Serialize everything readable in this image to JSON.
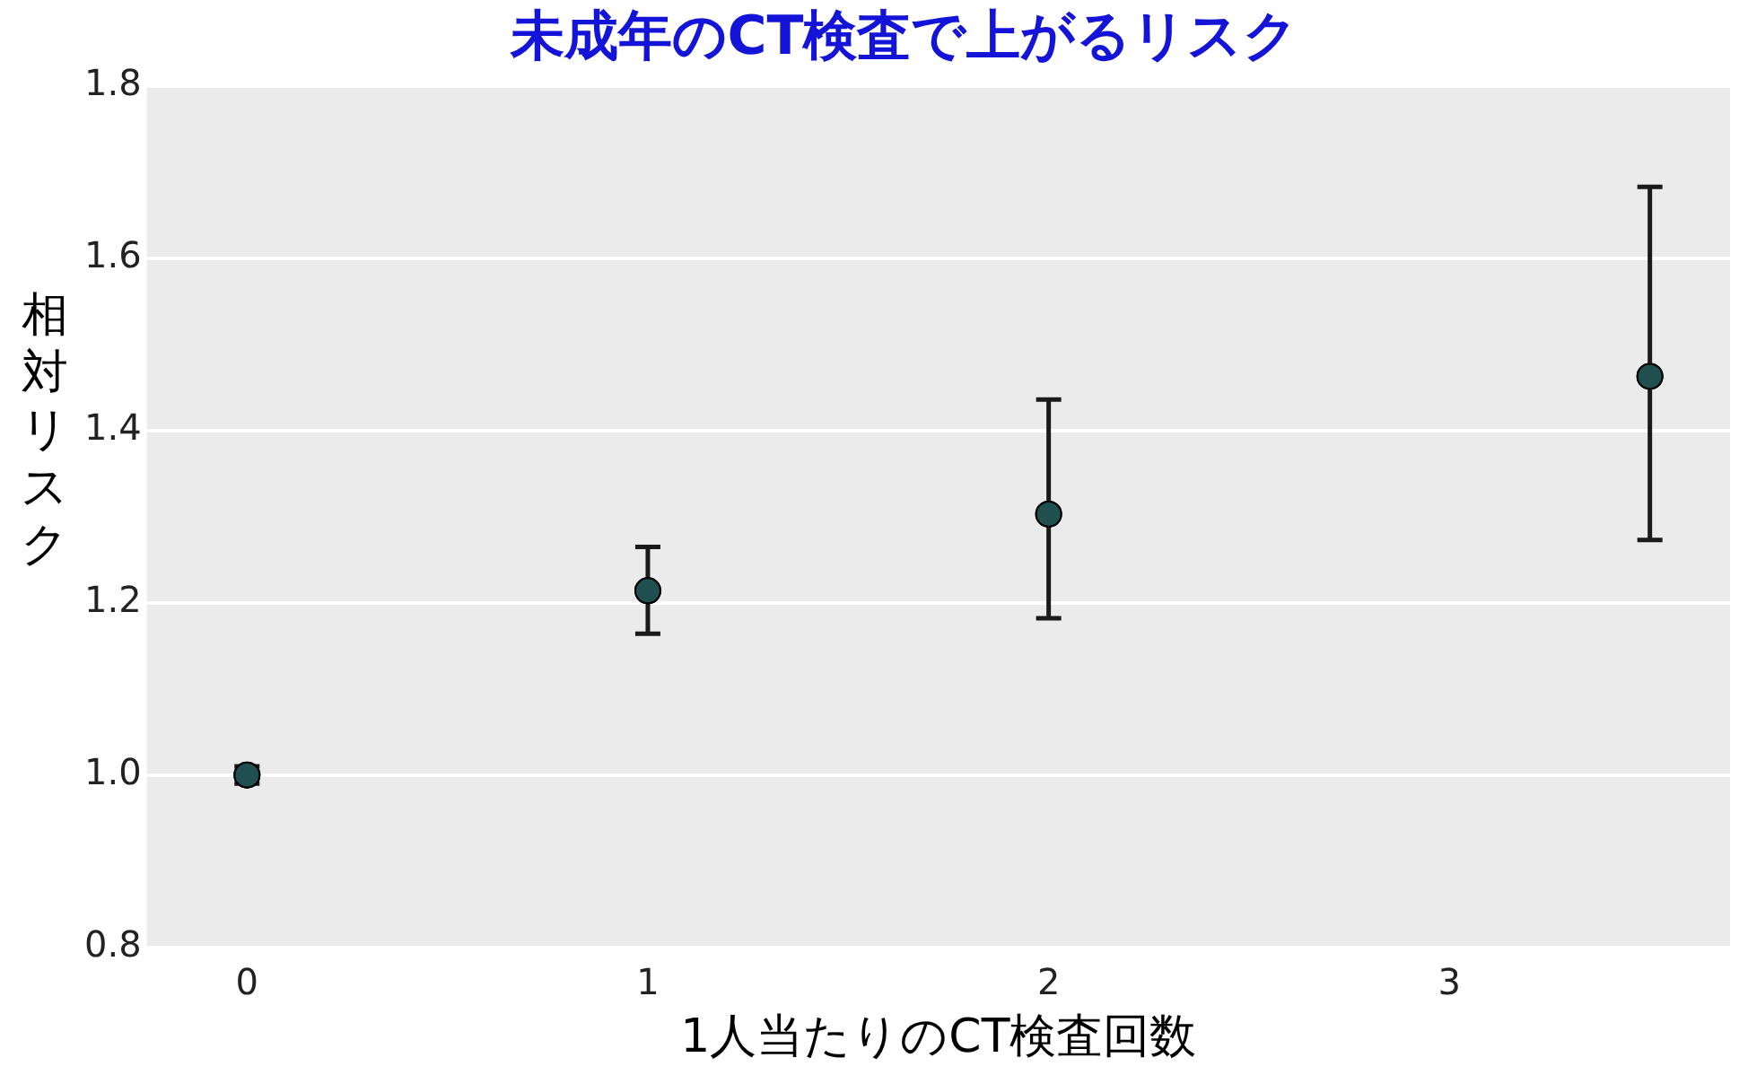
{
  "chart_data": {
    "type": "scatter",
    "title": "未成年のCT検査で上がるリスク",
    "xlabel": "1人当たりのCT検査回数",
    "ylabel": "相対リスク",
    "x": [
      0,
      1,
      2,
      3.5
    ],
    "series": [
      {
        "color": "#1f4f4f",
        "values": [
          1.0,
          1.214,
          1.303,
          1.463
        ],
        "errors": [
          [
            0.99,
            1.01
          ],
          [
            1.164,
            1.265
          ],
          [
            1.182,
            1.436
          ],
          [
            1.273,
            1.683
          ]
        ]
      }
    ],
    "xlim": [
      -0.25,
      3.7
    ],
    "xticks": [
      0,
      1,
      2,
      3
    ],
    "ylim": [
      0.8,
      1.8
    ],
    "yticks": [
      {
        "value": 0.8,
        "label": "0.8"
      },
      {
        "value": 1.0,
        "label": "1.0"
      },
      {
        "value": 1.2,
        "label": "1.2"
      },
      {
        "value": 1.4,
        "label": "1.4"
      },
      {
        "value": 1.6,
        "label": "1.6"
      },
      {
        "value": 1.8,
        "label": "1.8"
      }
    ],
    "grid": "y",
    "marker": "circle",
    "legend": false
  }
}
